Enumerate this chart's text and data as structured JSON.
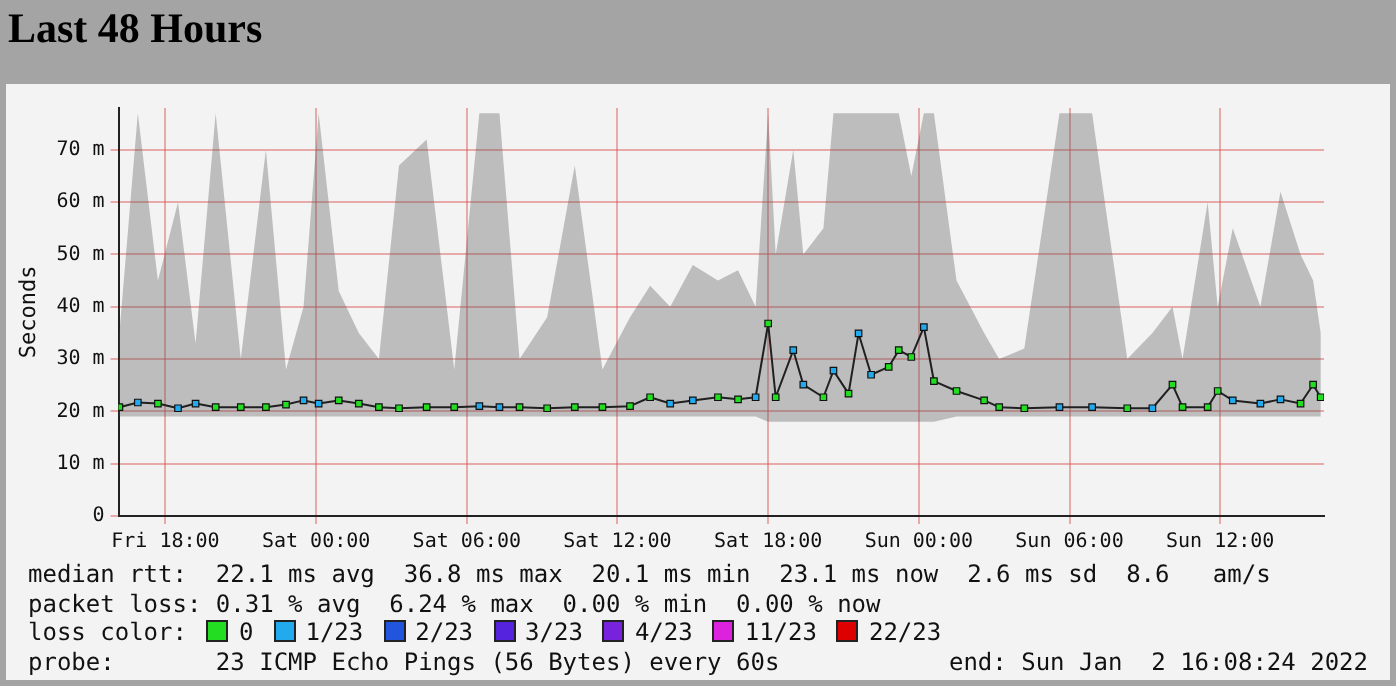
{
  "chart_data": {
    "type": "line",
    "title": "Last 48 Hours",
    "ylabel": "Seconds",
    "xlim": [
      "2021-12-31T16:08",
      "2022-01-02T16:08"
    ],
    "ylim": [
      0,
      78
    ],
    "xticks": [
      {
        "value": "2021-12-31T18:00",
        "label": "Fri 18:00"
      },
      {
        "value": "2022-01-01T00:00",
        "label": "Sat 00:00"
      },
      {
        "value": "2022-01-01T06:00",
        "label": "Sat 06:00"
      },
      {
        "value": "2022-01-01T12:00",
        "label": "Sat 12:00"
      },
      {
        "value": "2022-01-01T18:00",
        "label": "Sat 18:00"
      },
      {
        "value": "2022-01-02T00:00",
        "label": "Sun 00:00"
      },
      {
        "value": "2022-01-02T06:00",
        "label": "Sun 06:00"
      },
      {
        "value": "2022-01-02T12:00",
        "label": "Sun 12:00"
      }
    ],
    "yticks": [
      0,
      {
        "value": 10,
        "label": "10 m"
      },
      {
        "value": 20,
        "label": "20 m"
      },
      {
        "value": 30,
        "label": "30 m"
      },
      {
        "value": 40,
        "label": "40 m"
      },
      {
        "value": 50,
        "label": "50 m"
      },
      {
        "value": 60,
        "label": "60 m"
      },
      {
        "value": 70,
        "label": "70 m"
      }
    ],
    "grid": true,
    "legend": "bottom",
    "legend_title": "loss color:",
    "series": [
      {
        "color": "#202020",
        "x": [
          "2021-12-31T16:10",
          "2021-12-31T16:54",
          "2021-12-31T17:42",
          "2021-12-31T18:30",
          "2021-12-31T19:12",
          "2021-12-31T20:00",
          "2021-12-31T21:00",
          "2021-12-31T22:00",
          "2021-12-31T22:48",
          "2021-12-31T23:30",
          "2022-01-01T00:06",
          "2022-01-01T00:54",
          "2022-01-01T01:42",
          "2022-01-01T02:30",
          "2022-01-01T03:18",
          "2022-01-01T04:24",
          "2022-01-01T05:30",
          "2022-01-01T06:30",
          "2022-01-01T07:18",
          "2022-01-01T08:06",
          "2022-01-01T09:12",
          "2022-01-01T10:18",
          "2022-01-01T11:24",
          "2022-01-01T12:30",
          "2022-01-01T13:18",
          "2022-01-01T14:06",
          "2022-01-01T15:00",
          "2022-01-01T16:00",
          "2022-01-01T16:48",
          "2022-01-01T17:30",
          "2022-01-01T18:00",
          "2022-01-01T18:18",
          "2022-01-01T19:00",
          "2022-01-01T19:24",
          "2022-01-01T20:12",
          "2022-01-01T20:36",
          "2022-01-01T21:12",
          "2022-01-01T21:36",
          "2022-01-01T22:06",
          "2022-01-01T22:48",
          "2022-01-01T23:12",
          "2022-01-01T23:42",
          "2022-01-02T00:12",
          "2022-01-02T00:36",
          "2022-01-02T01:30",
          "2022-01-02T02:36",
          "2022-01-02T03:12",
          "2022-01-02T04:12",
          "2022-01-02T05:36",
          "2022-01-02T06:54",
          "2022-01-02T08:18",
          "2022-01-02T09:18",
          "2022-01-02T10:06",
          "2022-01-02T10:30",
          "2022-01-02T11:30",
          "2022-01-02T11:54",
          "2022-01-02T12:30",
          "2022-01-02T13:36",
          "2022-01-02T14:24",
          "2022-01-02T15:12",
          "2022-01-02T15:42",
          "2022-01-02T16:00"
        ],
        "values": [
          20.8,
          21.7,
          21.5,
          20.6,
          21.5,
          20.8,
          20.8,
          20.8,
          21.3,
          22.1,
          21.5,
          22.1,
          21.5,
          20.8,
          20.6,
          20.8,
          20.8,
          21.0,
          20.8,
          20.8,
          20.6,
          20.8,
          20.8,
          21.0,
          22.7,
          21.5,
          22.1,
          22.7,
          22.3,
          22.7,
          36.8,
          22.7,
          31.7,
          25.1,
          22.7,
          27.8,
          23.4,
          34.9,
          27.0,
          28.5,
          31.7,
          30.4,
          36.1,
          25.8,
          23.9,
          22.1,
          20.8,
          20.6,
          20.8,
          20.8,
          20.6,
          20.6,
          25.1,
          20.8,
          20.8,
          23.9,
          22.1,
          21.5,
          22.3,
          21.5,
          25.1,
          22.7
        ],
        "lower": [
          19,
          19,
          19,
          19,
          19,
          19,
          19,
          19,
          19,
          19,
          19,
          19,
          19,
          19,
          19,
          19,
          19,
          19,
          19,
          19,
          19,
          19,
          19,
          19,
          19,
          19,
          19,
          19,
          19,
          19,
          18,
          18,
          18,
          18,
          18,
          18,
          18,
          18,
          18,
          18,
          18,
          18,
          18,
          18,
          19,
          19,
          19,
          19,
          19,
          19,
          19,
          19,
          19,
          19,
          19,
          19,
          19,
          19,
          19,
          19,
          19,
          19
        ],
        "upper": [
          35,
          77,
          45,
          60,
          33,
          77,
          30,
          70,
          28,
          40,
          77,
          43,
          35,
          30,
          67,
          72,
          28,
          77,
          77,
          30,
          38,
          67,
          28,
          38,
          44,
          40,
          48,
          45,
          47,
          40,
          77,
          50,
          70,
          50,
          55,
          77,
          77,
          77,
          77,
          77,
          77,
          65,
          77,
          77,
          45,
          35,
          30,
          32,
          77,
          77,
          30,
          35,
          40,
          30,
          60,
          40,
          55,
          40,
          62,
          50,
          45,
          35
        ]
      },
      {
        "type": "scatter",
        "name": "0",
        "color": "#22dd22",
        "marker": "square",
        "x": [
          "2021-12-31T16:10",
          "2021-12-31T17:42",
          "2021-12-31T20:00",
          "2021-12-31T21:00",
          "2021-12-31T22:00",
          "2021-12-31T22:48",
          "2022-01-01T00:54",
          "2022-01-01T01:42",
          "2022-01-01T02:30",
          "2022-01-01T03:18",
          "2022-01-01T04:24",
          "2022-01-01T05:30",
          "2022-01-01T08:06",
          "2022-01-01T09:12",
          "2022-01-01T10:18",
          "2022-01-01T11:24",
          "2022-01-01T12:30",
          "2022-01-01T13:18",
          "2022-01-01T16:00",
          "2022-01-01T16:48",
          "2022-01-01T18:00",
          "2022-01-01T18:18",
          "2022-01-01T20:12",
          "2022-01-01T21:12",
          "2022-01-01T22:48",
          "2022-01-01T23:12",
          "2022-01-01T23:42",
          "2022-01-02T00:36",
          "2022-01-02T01:30",
          "2022-01-02T02:36",
          "2022-01-02T03:12",
          "2022-01-02T04:12",
          "2022-01-02T08:18",
          "2022-01-02T10:06",
          "2022-01-02T10:30",
          "2022-01-02T11:30",
          "2022-01-02T11:54",
          "2022-01-02T15:12",
          "2022-01-02T15:42",
          "2022-01-02T16:00"
        ],
        "values": [
          20.8,
          21.5,
          20.8,
          20.8,
          20.8,
          21.3,
          22.1,
          21.5,
          20.8,
          20.6,
          20.8,
          20.8,
          20.8,
          20.6,
          20.8,
          20.8,
          21.0,
          22.7,
          22.7,
          22.3,
          36.8,
          22.7,
          22.7,
          23.4,
          28.5,
          31.7,
          30.4,
          25.8,
          23.9,
          22.1,
          20.8,
          20.6,
          20.6,
          25.1,
          20.8,
          20.8,
          23.9,
          21.5,
          25.1,
          22.7
        ]
      },
      {
        "type": "scatter",
        "name": "1/23",
        "color": "#22aaee",
        "marker": "square",
        "x": [
          "2021-12-31T16:54",
          "2021-12-31T18:30",
          "2021-12-31T19:12",
          "2021-12-31T23:30",
          "2022-01-01T00:06",
          "2022-01-01T06:30",
          "2022-01-01T07:18",
          "2022-01-01T14:06",
          "2022-01-01T15:00",
          "2022-01-01T17:30",
          "2022-01-01T19:00",
          "2022-01-01T19:24",
          "2022-01-01T20:36",
          "2022-01-01T21:36",
          "2022-01-01T22:06",
          "2022-01-02T00:12",
          "2022-01-02T05:36",
          "2022-01-02T06:54",
          "2022-01-02T09:18",
          "2022-01-02T12:30",
          "2022-01-02T13:36",
          "2022-01-02T14:24"
        ],
        "values": [
          21.7,
          20.6,
          21.5,
          22.1,
          21.5,
          21.0,
          20.8,
          21.5,
          22.1,
          22.7,
          31.7,
          25.1,
          27.8,
          34.9,
          27.0,
          36.1,
          20.8,
          20.8,
          20.6,
          22.1,
          21.5,
          22.3
        ]
      },
      {
        "type": "scatter",
        "name": "2/23",
        "color": "#2255dd",
        "marker": "square"
      },
      {
        "type": "scatter",
        "name": "3/23",
        "color": "#5522dd",
        "marker": "square"
      },
      {
        "type": "scatter",
        "name": "4/23",
        "color": "#7722dd",
        "marker": "square"
      },
      {
        "type": "scatter",
        "name": "11/23",
        "color": "#dd22dd",
        "marker": "square"
      },
      {
        "type": "scatter",
        "name": "22/23",
        "color": "#dd0000",
        "marker": "square"
      }
    ],
    "annotations": [
      "median rtt:  22.1 ms avg  36.8 ms max  20.1 ms min  23.1 ms now  2.6 ms sd  8.6   am/s",
      "packet loss: 0.31 % avg  6.24 % max  0.00 % min  0.00 % now",
      "probe:       23 ICMP Echo Pings (56 Bytes) every 60s",
      "end: Sun Jan  2 16:08:24 2022"
    ]
  }
}
